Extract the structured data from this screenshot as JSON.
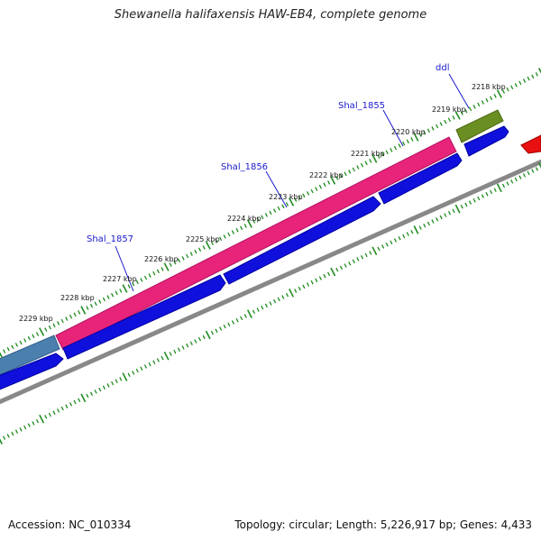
{
  "title": "Shewanella halifaxensis HAW-EB4, complete genome",
  "footer": {
    "accession": "Accession: NC_010334",
    "summary": "Topology: circular; Length: 5,226,917 bp; Genes: 4,433"
  },
  "scale_labels": [
    "2218 kbp",
    "2219 kbp",
    "2220 kbp",
    "2221 kbp",
    "2222 kbp",
    "2223 kbp",
    "2224 kbp",
    "2225 kbp",
    "2226 kbp",
    "2227 kbp",
    "2228 kbp",
    "2229 kbp"
  ],
  "gene_labels": [
    "ddl",
    "Shal_1855",
    "Shal_1856",
    "Shal_1857"
  ],
  "colors": {
    "magenta_gene": "#e8237a",
    "blue_cds": "#1010dd",
    "steelblue_gene": "#4a7fae",
    "olive_gene": "#6b8e23",
    "red_gene": "#e81010",
    "backbone": "#888888",
    "tick_green": "#1e8c1e",
    "label_blue": "#1a1acc"
  }
}
